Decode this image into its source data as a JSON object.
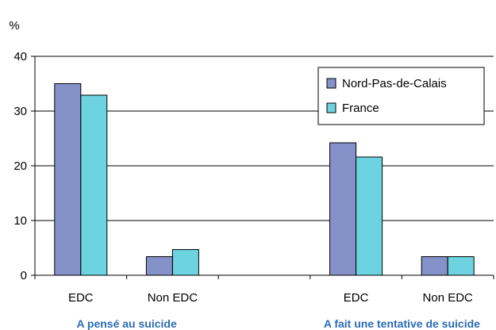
{
  "chart_data": {
    "type": "bar",
    "ylabel": "%",
    "ylim": [
      0,
      40
    ],
    "yticks": [
      0,
      10,
      20,
      30,
      40
    ],
    "grid": true,
    "legend_position": "top-right",
    "categories": [
      "EDC",
      "Non EDC",
      "",
      "EDC",
      "Non EDC"
    ],
    "groups": [
      {
        "label": "A pensé au suicide"
      },
      {
        "label": "A fait une tentative de suicide"
      }
    ],
    "series": [
      {
        "name": "Nord-Pas-de-Calais",
        "color": "#8591c9",
        "values": [
          35,
          3.4,
          null,
          24.2,
          3.4
        ]
      },
      {
        "name": "France",
        "color": "#6dd3e0",
        "values": [
          32.9,
          4.7,
          null,
          21.6,
          3.4
        ]
      }
    ]
  },
  "colors": {
    "axis": "#000000",
    "grid": "#000000",
    "group_label": "#2a6bb3"
  }
}
